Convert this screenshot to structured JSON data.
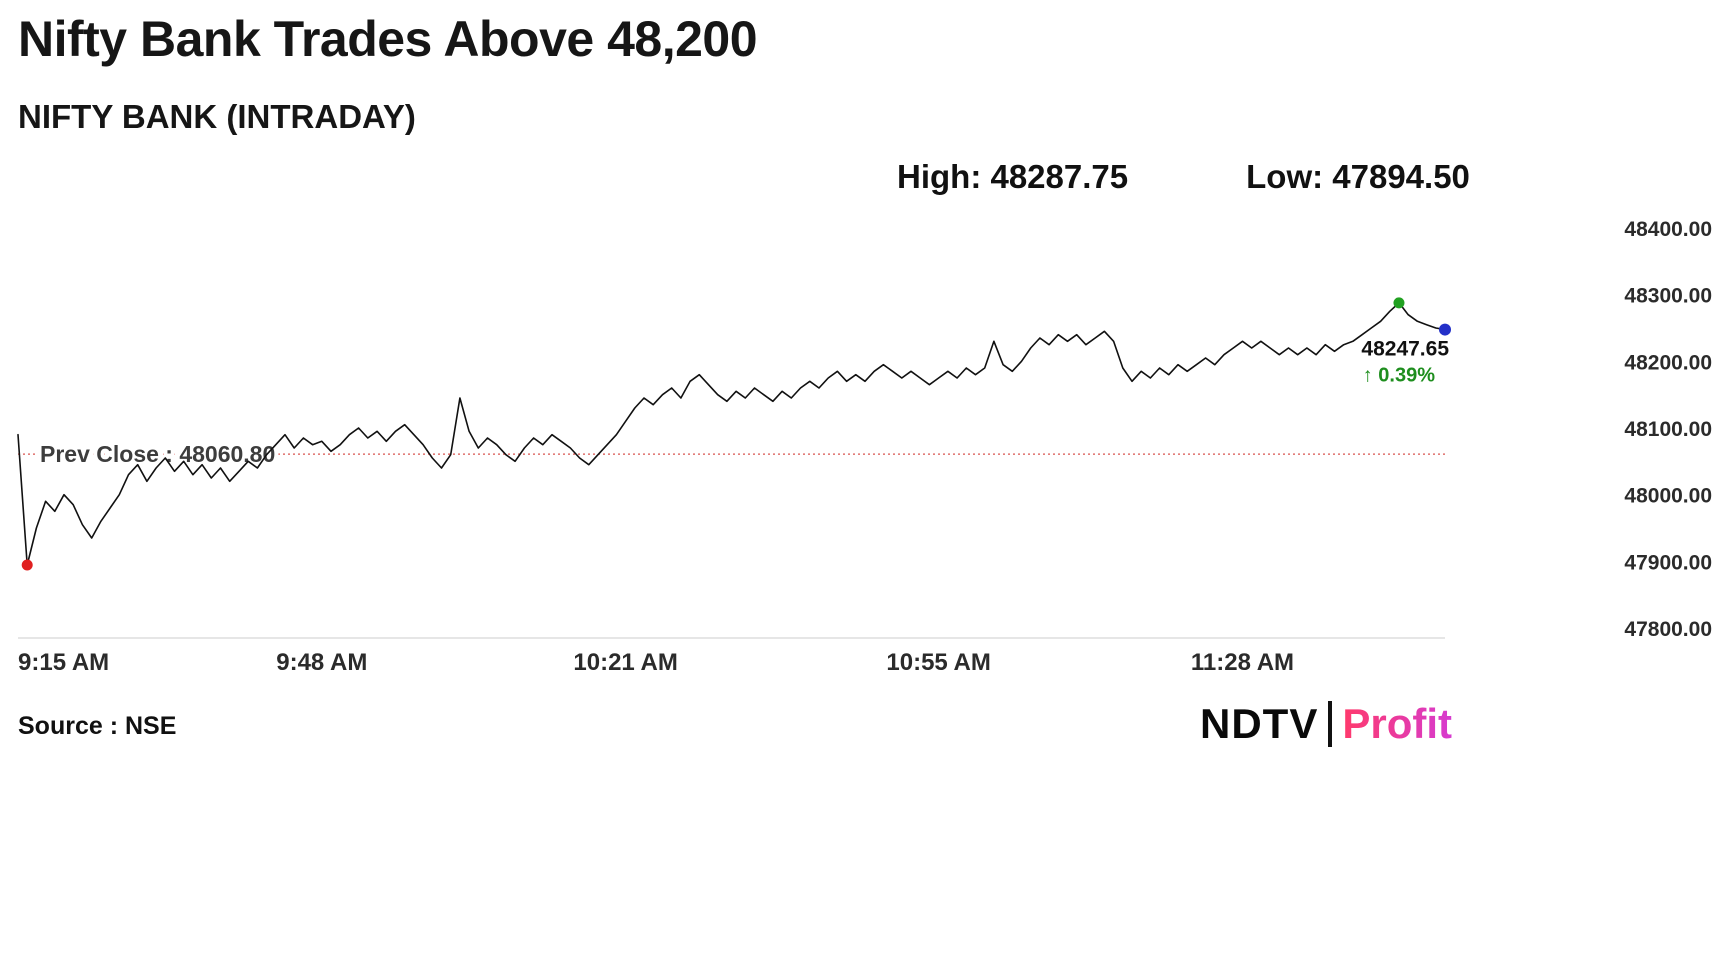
{
  "header": {
    "title": "Nifty Bank Trades Above 48,200",
    "subtitle": "NIFTY BANK (INTRADAY)",
    "high_label": "High: 48287.75",
    "low_label": "Low: 47894.50"
  },
  "footer": {
    "source": "Source : NSE",
    "logo_ndtv": "NDTV",
    "logo_profit": "Profit"
  },
  "chart_data": {
    "type": "line",
    "title": "NIFTY BANK (INTRADAY)",
    "x_start": "9:15 AM",
    "interval_minutes": 1,
    "ylim": [
      47800,
      48400
    ],
    "high": 48287.75,
    "low": 47894.5,
    "prev_close": 48060.8,
    "prev_close_label": "Prev Close : 48060.80",
    "last_price": 48247.65,
    "last_price_label": "48247.65",
    "last_change_label": "↑ 0.39%",
    "y_ticks": [
      {
        "value": 48400,
        "label": "48400.00"
      },
      {
        "value": 48300,
        "label": "48300.00"
      },
      {
        "value": 48200,
        "label": "48200.00"
      },
      {
        "value": 48100,
        "label": "48100.00"
      },
      {
        "value": 48000,
        "label": "48000.00"
      },
      {
        "value": 47900,
        "label": "47900.00"
      },
      {
        "value": 47800,
        "label": "47800.00"
      }
    ],
    "x_ticks": [
      {
        "minute": 0,
        "label": "9:15 AM"
      },
      {
        "minute": 33,
        "label": "9:48 AM"
      },
      {
        "minute": 66,
        "label": "10:21 AM"
      },
      {
        "minute": 100,
        "label": "10:55 AM"
      },
      {
        "minute": 133,
        "label": "11:28 AM"
      }
    ],
    "values": [
      48090,
      47894.5,
      47950,
      47990,
      47975,
      48000,
      47985,
      47955,
      47935,
      47960,
      47980,
      48000,
      48030,
      48045,
      48020,
      48040,
      48055,
      48035,
      48050,
      48030,
      48045,
      48025,
      48040,
      48020,
      48035,
      48050,
      48040,
      48060,
      48075,
      48090,
      48070,
      48085,
      48075,
      48080,
      48065,
      48075,
      48090,
      48100,
      48085,
      48095,
      48080,
      48095,
      48105,
      48090,
      48075,
      48055,
      48040,
      48060,
      48145,
      48095,
      48070,
      48085,
      48075,
      48060,
      48050,
      48070,
      48085,
      48075,
      48090,
      48080,
      48070,
      48055,
      48045,
      48060,
      48075,
      48090,
      48110,
      48130,
      48145,
      48135,
      48150,
      48160,
      48145,
      48170,
      48180,
      48165,
      48150,
      48140,
      48155,
      48145,
      48160,
      48150,
      48140,
      48155,
      48145,
      48160,
      48170,
      48160,
      48175,
      48185,
      48170,
      48180,
      48170,
      48185,
      48195,
      48185,
      48175,
      48185,
      48175,
      48165,
      48175,
      48185,
      48175,
      48190,
      48180,
      48190,
      48230,
      48195,
      48185,
      48200,
      48220,
      48235,
      48225,
      48240,
      48230,
      48240,
      48225,
      48235,
      48245,
      48230,
      48190,
      48170,
      48185,
      48175,
      48190,
      48180,
      48195,
      48185,
      48195,
      48205,
      48195,
      48210,
      48220,
      48230,
      48220,
      48230,
      48220,
      48210,
      48220,
      48210,
      48220,
      48210,
      48225,
      48215,
      48225,
      48230,
      48240,
      48250,
      48260,
      48275,
      48287.75,
      48270,
      48260,
      48255,
      48250,
      48247.65
    ],
    "colors": {
      "line": "#111111",
      "prev_close": "#d9534f",
      "low_dot": "#e02020",
      "high_dot": "#21a121",
      "last_dot": "#2330c8",
      "change": "#1e8e1e"
    }
  }
}
